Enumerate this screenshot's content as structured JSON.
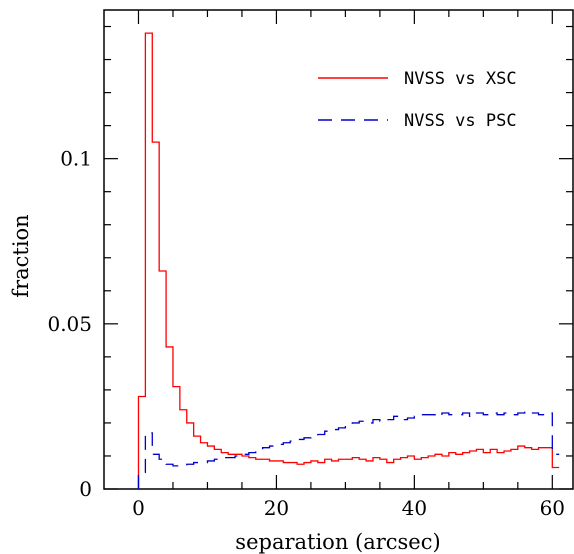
{
  "chart_data": {
    "type": "line",
    "subtype": "step-histogram",
    "title": "",
    "xlabel": "separation (arcsec)",
    "ylabel": "fraction",
    "xlim": [
      -5,
      63
    ],
    "ylim": [
      0,
      0.145
    ],
    "x_ticks": [
      0,
      20,
      40,
      60
    ],
    "x_tick_labels": [
      "0",
      "20",
      "40",
      "60"
    ],
    "y_ticks": [
      0,
      0.05,
      0.1
    ],
    "y_tick_labels": [
      "0",
      "0.05",
      "0.1"
    ],
    "bin_width": 1,
    "legend_position": "top-right",
    "series": [
      {
        "name": "NVSS vs XSC",
        "color": "#ff0000",
        "dash": "solid",
        "bin_edges_start": 0,
        "values": [
          0.028,
          0.138,
          0.105,
          0.066,
          0.043,
          0.031,
          0.024,
          0.02,
          0.016,
          0.014,
          0.013,
          0.012,
          0.011,
          0.0105,
          0.0105,
          0.01,
          0.0095,
          0.009,
          0.009,
          0.0085,
          0.0085,
          0.008,
          0.008,
          0.0075,
          0.008,
          0.0085,
          0.008,
          0.009,
          0.0085,
          0.009,
          0.009,
          0.0095,
          0.009,
          0.0085,
          0.0095,
          0.009,
          0.008,
          0.009,
          0.0095,
          0.01,
          0.009,
          0.0095,
          0.01,
          0.0105,
          0.01,
          0.011,
          0.0105,
          0.011,
          0.0115,
          0.012,
          0.011,
          0.012,
          0.011,
          0.0115,
          0.012,
          0.013,
          0.0125,
          0.012,
          0.0125,
          0.0125,
          0.0065
        ]
      },
      {
        "name": "NVSS vs PSC",
        "color": "#0000cc",
        "dash": "dashed",
        "bin_edges_start": 0,
        "values": [
          0.005,
          0.017,
          0.0105,
          0.009,
          0.0075,
          0.007,
          0.007,
          0.0075,
          0.008,
          0.008,
          0.0085,
          0.009,
          0.0095,
          0.0095,
          0.01,
          0.0105,
          0.011,
          0.012,
          0.0125,
          0.013,
          0.0135,
          0.014,
          0.0145,
          0.015,
          0.0155,
          0.016,
          0.0165,
          0.0175,
          0.018,
          0.0185,
          0.0195,
          0.02,
          0.0205,
          0.02,
          0.021,
          0.0205,
          0.021,
          0.022,
          0.021,
          0.0215,
          0.022,
          0.0225,
          0.0225,
          0.022,
          0.023,
          0.0225,
          0.0225,
          0.023,
          0.022,
          0.023,
          0.0225,
          0.023,
          0.0225,
          0.023,
          0.0225,
          0.023,
          0.0235,
          0.023,
          0.0225,
          0.023,
          0.0105
        ]
      }
    ]
  }
}
